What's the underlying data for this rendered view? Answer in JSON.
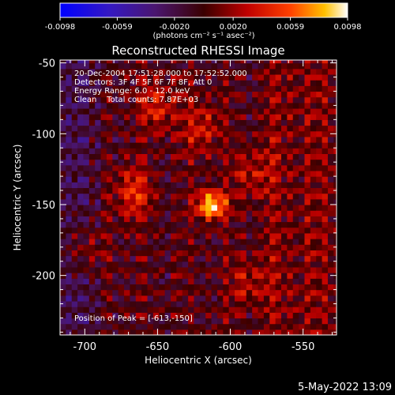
{
  "chart_data": {
    "type": "heatmap",
    "title": "Reconstructed RHESSI Image",
    "xlabel": "Heliocentric X (arcsec)",
    "ylabel": "Heliocentric Y (arcsec)",
    "xlim": [
      -717,
      -527
    ],
    "ylim": [
      -242,
      -48
    ],
    "xticks": [
      -700,
      -650,
      -600,
      -550
    ],
    "yticks": [
      -50,
      -100,
      -150,
      -200
    ],
    "colorbar": {
      "ticks": [
        "-0.0098",
        "-0.0059",
        "-0.0020",
        "0.0020",
        "0.0059",
        "0.0098"
      ],
      "range": [
        -0.0098,
        0.0098
      ],
      "unit_label": "(photons cm⁻² s⁻¹ asec⁻²)"
    },
    "annotations": [
      "20-Dec-2004 17:51:28.000 to 17:52:52.000",
      "Detectors: 3F 4F 5F 6F 7F 8F, Att 0",
      "Energy Range: 6.0 - 12.0 keV",
      "Clean    Total counts: 7.87E+03"
    ],
    "peak_label": "Position of Peak = [-613,-150]",
    "peak": {
      "x": -613,
      "y": -150,
      "value": 0.0098
    },
    "sources": [
      {
        "x": -613,
        "y": -150,
        "value": 0.0098
      },
      {
        "x": -667,
        "y": -141,
        "value": 0.0045
      },
      {
        "x": -650,
        "y": -80,
        "value": 0.004
      },
      {
        "x": -620,
        "y": -95,
        "value": 0.0036
      },
      {
        "x": -585,
        "y": -128,
        "value": 0.0032
      },
      {
        "x": -700,
        "y": -180,
        "value": 0.0028
      },
      {
        "x": -588,
        "y": -205,
        "value": 0.003
      }
    ]
  },
  "footer": {
    "date": "5-May-2022 13:09"
  }
}
